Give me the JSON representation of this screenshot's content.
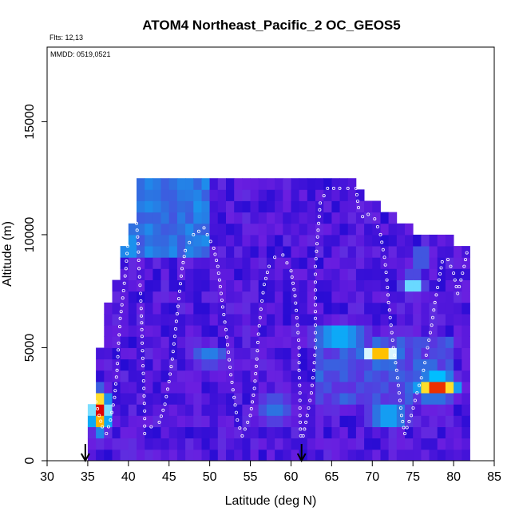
{
  "chart_data": {
    "type": "heatmap",
    "title": "ATOM4 Northeast_Pacific_2 OC_GEOS5",
    "annotations": {
      "flights": "Flts: 12,13",
      "dates": "MMDD: 0519,0521"
    },
    "xlabel": "Latitude (deg N)",
    "ylabel": "Altitude (m)",
    "xlim": [
      30,
      85
    ],
    "ylim": [
      0,
      18300
    ],
    "xticks": [
      30,
      35,
      40,
      45,
      50,
      55,
      60,
      65,
      70,
      75,
      80,
      85
    ],
    "yticks": [
      0,
      5000,
      10000,
      15000
    ],
    "grid": false,
    "colorscale": [
      "#0000cd",
      "#6a1ee0",
      "#2f6fe0",
      "#00bfff",
      "#ffffff",
      "#ffd700",
      "#ff8c00",
      "#e00000"
    ],
    "columns": [
      {
        "x0": 35.0,
        "x1": 36.0,
        "top": 2500
      },
      {
        "x0": 36.0,
        "x1": 37.0,
        "top": 5000
      },
      {
        "x0": 37.0,
        "x1": 38.0,
        "top": 7000
      },
      {
        "x0": 38.0,
        "x1": 39.0,
        "top": 8000
      },
      {
        "x0": 39.0,
        "x1": 40.0,
        "top": 9300
      },
      {
        "x0": 40.0,
        "x1": 41.0,
        "top": 10300
      },
      {
        "x0": 41.0,
        "x1": 42.0,
        "top": 12500
      },
      {
        "x0": 42.0,
        "x1": 68.0,
        "top": 12500
      },
      {
        "x0": 68.0,
        "x1": 69.0,
        "top": 12000
      },
      {
        "x0": 69.0,
        "x1": 71.0,
        "top": 11500
      },
      {
        "x0": 71.0,
        "x1": 73.0,
        "top": 11000
      },
      {
        "x0": 73.0,
        "x1": 75.0,
        "top": 10500
      },
      {
        "x0": 75.0,
        "x1": 78.0,
        "top": 10000
      },
      {
        "x0": 78.0,
        "x1": 80.0,
        "top": 9600
      },
      {
        "x0": 80.0,
        "x1": 82.0,
        "top": 9300
      }
    ],
    "hotspots": [
      {
        "lat": 36.5,
        "alt": 2200,
        "intensity": 1.0,
        "rx": 1.2,
        "ry": 900
      },
      {
        "lat": 78.0,
        "alt": 3300,
        "intensity": 1.0,
        "rx": 2.5,
        "ry": 500
      },
      {
        "lat": 71.0,
        "alt": 4700,
        "intensity": 0.8,
        "rx": 2.5,
        "ry": 400
      },
      {
        "lat": 75.0,
        "alt": 7800,
        "intensity": 0.55,
        "rx": 1.5,
        "ry": 500
      },
      {
        "lat": 76.0,
        "alt": 9000,
        "intensity": 0.45,
        "rx": 1.5,
        "ry": 350
      },
      {
        "lat": 66.0,
        "alt": 5500,
        "intensity": 0.45,
        "rx": 4.0,
        "ry": 700
      },
      {
        "lat": 72.0,
        "alt": 2000,
        "intensity": 0.45,
        "rx": 3.0,
        "ry": 600
      },
      {
        "lat": 58.0,
        "alt": 2300,
        "intensity": 0.3,
        "rx": 3.0,
        "ry": 900
      },
      {
        "lat": 50.0,
        "alt": 4600,
        "intensity": 0.35,
        "rx": 3.0,
        "ry": 500
      },
      {
        "lat": 40.0,
        "alt": 11500,
        "intensity": 0.3,
        "rx": 3.0,
        "ry": 800
      }
    ],
    "flight_track": [
      [
        34.9,
        5000
      ],
      [
        35.0,
        4000
      ],
      [
        35.5,
        3200
      ],
      [
        36.0,
        2600
      ],
      [
        36.4,
        2000
      ],
      [
        36.8,
        1500
      ],
      [
        37.3,
        1200
      ],
      [
        37.8,
        1800
      ],
      [
        38.3,
        2800
      ],
      [
        38.6,
        4000
      ],
      [
        38.8,
        5200
      ],
      [
        39.0,
        6300
      ],
      [
        39.3,
        7200
      ],
      [
        39.7,
        8500
      ],
      [
        39.9,
        9500
      ],
      [
        39.2,
        10200
      ],
      [
        38.5,
        11200
      ],
      [
        38.0,
        12150
      ],
      [
        38.4,
        12200
      ],
      [
        39.0,
        12200
      ],
      [
        40.0,
        11200
      ],
      [
        41.0,
        10500
      ],
      [
        41.2,
        9600
      ],
      [
        41.3,
        8500
      ],
      [
        41.5,
        7400
      ],
      [
        41.6,
        6400
      ],
      [
        41.7,
        5200
      ],
      [
        41.8,
        4200
      ],
      [
        41.9,
        3200
      ],
      [
        42.0,
        2200
      ],
      [
        42.0,
        1200
      ],
      [
        42.8,
        1500
      ],
      [
        43.8,
        1700
      ],
      [
        44.5,
        2500
      ],
      [
        45.0,
        3500
      ],
      [
        45.4,
        4500
      ],
      [
        45.7,
        5500
      ],
      [
        46.0,
        6500
      ],
      [
        46.3,
        7500
      ],
      [
        46.6,
        8500
      ],
      [
        47.0,
        9300
      ],
      [
        48.0,
        10000
      ],
      [
        49.3,
        10300
      ],
      [
        50.5,
        9400
      ],
      [
        51.0,
        8600
      ],
      [
        51.3,
        7700
      ],
      [
        51.6,
        6800
      ],
      [
        52.0,
        5800
      ],
      [
        52.3,
        4800
      ],
      [
        52.6,
        3800
      ],
      [
        53.0,
        2800
      ],
      [
        53.4,
        1800
      ],
      [
        54.0,
        1100
      ],
      [
        55.0,
        2000
      ],
      [
        55.5,
        3200
      ],
      [
        55.8,
        4500
      ],
      [
        56.0,
        5600
      ],
      [
        56.3,
        6700
      ],
      [
        56.7,
        7800
      ],
      [
        57.3,
        8600
      ],
      [
        58.0,
        9000
      ],
      [
        59.0,
        9100
      ],
      [
        60.0,
        8400
      ],
      [
        60.5,
        7300
      ],
      [
        60.8,
        6000
      ],
      [
        61.0,
        5000
      ],
      [
        61.0,
        4000
      ],
      [
        61.1,
        3000
      ],
      [
        61.1,
        2000
      ],
      [
        61.2,
        1100
      ],
      [
        61.5,
        1100
      ],
      [
        62.0,
        2000
      ],
      [
        62.5,
        3000
      ],
      [
        62.8,
        4000
      ],
      [
        63.0,
        5000
      ],
      [
        63.0,
        6000
      ],
      [
        63.0,
        7200
      ],
      [
        63.0,
        8600
      ],
      [
        63.2,
        9600
      ],
      [
        63.4,
        10500
      ],
      [
        63.6,
        11400
      ],
      [
        64.5,
        12050
      ],
      [
        66.0,
        12050
      ],
      [
        68.0,
        12050
      ],
      [
        68.3,
        11200
      ],
      [
        68.8,
        10800
      ],
      [
        69.5,
        10900
      ],
      [
        70.3,
        10700
      ],
      [
        71.0,
        10000
      ],
      [
        71.5,
        9000
      ],
      [
        71.8,
        8000
      ],
      [
        72.0,
        7000
      ],
      [
        72.3,
        6000
      ],
      [
        72.6,
        5000
      ],
      [
        73.0,
        4000
      ],
      [
        73.3,
        3000
      ],
      [
        73.6,
        2000
      ],
      [
        74.0,
        1200
      ],
      [
        74.8,
        2000
      ],
      [
        75.5,
        3000
      ],
      [
        76.3,
        4000
      ],
      [
        76.8,
        5000
      ],
      [
        77.3,
        6000
      ],
      [
        77.7,
        7000
      ],
      [
        78.2,
        8000
      ],
      [
        78.6,
        8800
      ],
      [
        79.3,
        8900
      ],
      [
        80.0,
        8300
      ],
      [
        80.5,
        7400
      ],
      [
        81.3,
        8600
      ],
      [
        81.8,
        9500
      ]
    ],
    "arrows_at_lat": [
      34.7,
      61.3
    ]
  }
}
